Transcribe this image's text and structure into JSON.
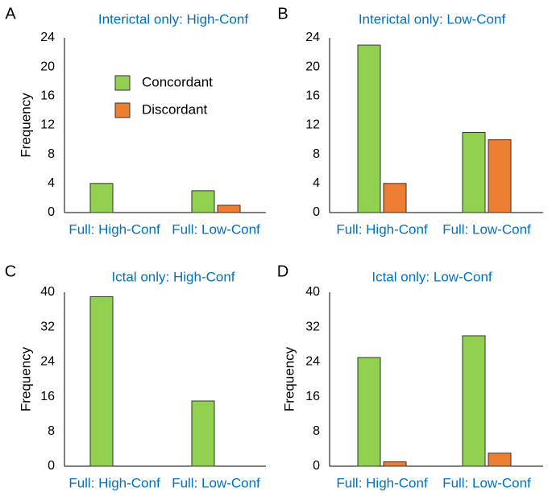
{
  "legend": {
    "items": [
      {
        "label": "Concordant",
        "color": "#92d050"
      },
      {
        "label": "Discordant",
        "color": "#ed7d31"
      }
    ]
  },
  "colors": {
    "concordant": "#92d050",
    "discordant": "#ed7d31",
    "title": "#0070c0",
    "axis": "#000000",
    "bar_stroke": "#333333"
  },
  "chart_data": [
    {
      "panel_label": "A",
      "type": "bar",
      "title": "Interictal only: High-Conf",
      "ylabel": "Frequency",
      "xlabel": "",
      "categories": [
        "Full: High-Conf",
        "Full: Low-Conf"
      ],
      "series": [
        {
          "name": "Concordant",
          "values": [
            4,
            3
          ]
        },
        {
          "name": "Discordant",
          "values": [
            0,
            1
          ]
        }
      ],
      "ylim": [
        0,
        24
      ],
      "yticks": [
        0,
        4,
        8,
        12,
        16,
        20,
        24
      ],
      "legend_position": "center"
    },
    {
      "panel_label": "B",
      "type": "bar",
      "title": "Interictal only: Low-Conf",
      "ylabel": "",
      "xlabel": "",
      "categories": [
        "Full: High-Conf",
        "Full: Low-Conf"
      ],
      "series": [
        {
          "name": "Concordant",
          "values": [
            23,
            11
          ]
        },
        {
          "name": "Discordant",
          "values": [
            4,
            10
          ]
        }
      ],
      "ylim": [
        0,
        24
      ],
      "yticks": [
        0,
        4,
        8,
        12,
        16,
        20,
        24
      ]
    },
    {
      "panel_label": "C",
      "type": "bar",
      "title": "Ictal only: High-Conf",
      "ylabel": "Frequency",
      "xlabel": "",
      "categories": [
        "Full: High-Conf",
        "Full: Low-Conf"
      ],
      "series": [
        {
          "name": "Concordant",
          "values": [
            39,
            15
          ]
        },
        {
          "name": "Discordant",
          "values": [
            0,
            0
          ]
        }
      ],
      "ylim": [
        0,
        40
      ],
      "yticks": [
        0,
        8,
        16,
        24,
        32,
        40
      ]
    },
    {
      "panel_label": "D",
      "type": "bar",
      "title": "Ictal only: Low-Conf",
      "ylabel": "Frequency",
      "xlabel": "",
      "categories": [
        "Full: High-Conf",
        "Full: Low-Conf"
      ],
      "series": [
        {
          "name": "Concordant",
          "values": [
            25,
            30
          ]
        },
        {
          "name": "Discordant",
          "values": [
            1,
            3
          ]
        }
      ],
      "ylim": [
        0,
        40
      ],
      "yticks": [
        0,
        8,
        16,
        24,
        32,
        40
      ]
    }
  ]
}
